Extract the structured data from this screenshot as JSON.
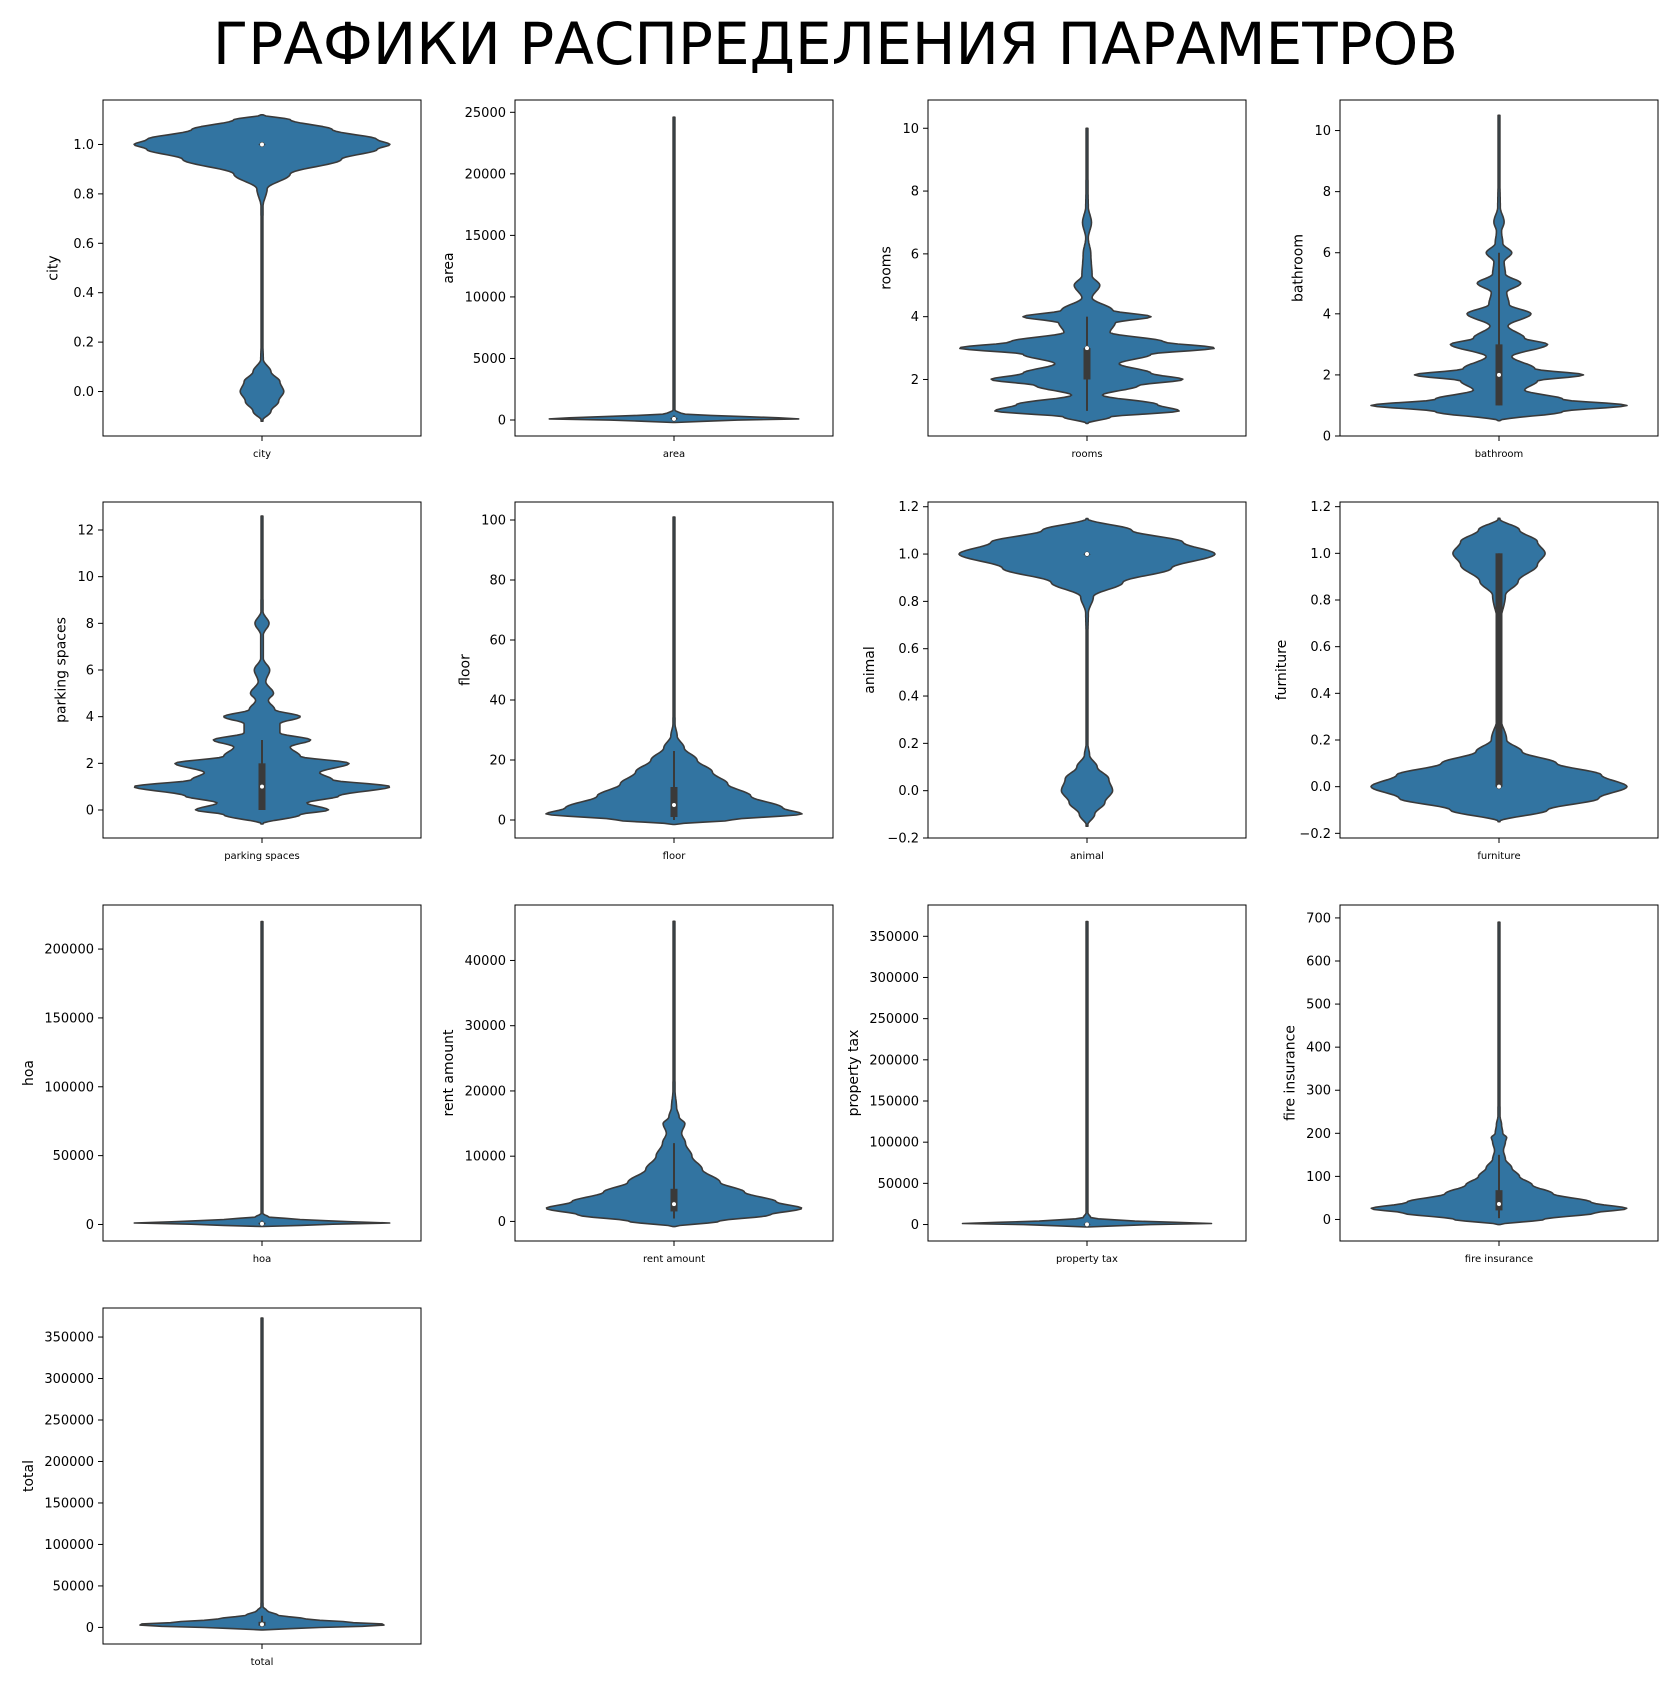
{
  "title": "ГРАФИКИ РАСПРЕДЕЛЕНИЯ ПАРАМЕТРОВ",
  "colors": {
    "violin": "#3274a1",
    "edge": "#3a3a3a",
    "box": "#3a3a3a",
    "median": "#ffffff",
    "frame": "#000000"
  },
  "chart_data": [
    {
      "type": "violin",
      "category": "city",
      "ylabel": "city",
      "ylim": [
        -0.18,
        1.18
      ],
      "yticks": [
        0.0,
        0.2,
        0.4,
        0.6,
        0.8,
        1.0
      ],
      "ytick_labels": [
        "0.0",
        "0.2",
        "0.4",
        "0.6",
        "0.8",
        "1.0"
      ],
      "density": [
        [
          -0.12,
          0
        ],
        [
          -0.08,
          0.07
        ],
        [
          -0.04,
          0.13
        ],
        [
          0.0,
          0.17
        ],
        [
          0.04,
          0.14
        ],
        [
          0.08,
          0.07
        ],
        [
          0.13,
          0.01
        ],
        [
          0.2,
          0.006
        ],
        [
          0.4,
          0.004
        ],
        [
          0.6,
          0.004
        ],
        [
          0.75,
          0.008
        ],
        [
          0.82,
          0.04
        ],
        [
          0.88,
          0.22
        ],
        [
          0.94,
          0.62
        ],
        [
          0.98,
          0.9
        ],
        [
          1.0,
          1.0
        ],
        [
          1.02,
          0.9
        ],
        [
          1.06,
          0.55
        ],
        [
          1.1,
          0.22
        ],
        [
          1.12,
          0
        ]
      ],
      "box": {
        "q1": 1.0,
        "median": 1.0,
        "q3": 1.0,
        "whisker_low": 1.0,
        "whisker_high": 1.0
      }
    },
    {
      "type": "violin",
      "category": "area",
      "ylabel": "area",
      "ylim": [
        -1300,
        26000
      ],
      "yticks": [
        0,
        5000,
        10000,
        15000,
        20000,
        25000
      ],
      "ytick_labels": [
        "0",
        "5000",
        "10000",
        "15000",
        "20000",
        "25000"
      ],
      "density": [
        [
          -200,
          0
        ],
        [
          0,
          0.5
        ],
        [
          100,
          1.0
        ],
        [
          200,
          0.8
        ],
        [
          350,
          0.3
        ],
        [
          500,
          0.06
        ],
        [
          800,
          0.006
        ],
        [
          2000,
          0.004
        ],
        [
          10000,
          0.004
        ],
        [
          24600,
          0
        ]
      ],
      "box": {
        "q1": 56,
        "median": 90,
        "q3": 182,
        "whisker_low": 11,
        "whisker_high": 360
      }
    },
    {
      "type": "violin",
      "category": "rooms",
      "ylabel": "rooms",
      "ylim": [
        0.2,
        10.9
      ],
      "yticks": [
        2,
        4,
        6,
        8,
        10
      ],
      "ytick_labels": [
        "2",
        "4",
        "6",
        "8",
        "10"
      ],
      "density": [
        [
          0.6,
          0
        ],
        [
          0.8,
          0.18
        ],
        [
          1.0,
          0.72
        ],
        [
          1.2,
          0.55
        ],
        [
          1.5,
          0.12
        ],
        [
          1.8,
          0.4
        ],
        [
          2.0,
          0.75
        ],
        [
          2.2,
          0.5
        ],
        [
          2.5,
          0.25
        ],
        [
          2.8,
          0.5
        ],
        [
          3.0,
          1.0
        ],
        [
          3.2,
          0.6
        ],
        [
          3.5,
          0.18
        ],
        [
          3.8,
          0.22
        ],
        [
          4.0,
          0.5
        ],
        [
          4.2,
          0.2
        ],
        [
          4.6,
          0.04
        ],
        [
          5.0,
          0.1
        ],
        [
          5.3,
          0.04
        ],
        [
          6.0,
          0.03
        ],
        [
          6.5,
          0.01
        ],
        [
          7.0,
          0.035
        ],
        [
          7.5,
          0.01
        ],
        [
          8.0,
          0.008
        ],
        [
          9.0,
          0.006
        ],
        [
          10.0,
          0
        ]
      ],
      "box": {
        "q1": 2,
        "median": 3,
        "q3": 3,
        "whisker_low": 1,
        "whisker_high": 4
      }
    },
    {
      "type": "violin",
      "category": "bathroom",
      "ylabel": "bathroom",
      "ylim": [
        0,
        11
      ],
      "yticks": [
        0,
        2,
        4,
        6,
        8,
        10
      ],
      "ytick_labels": [
        "0",
        "2",
        "4",
        "6",
        "8",
        "10"
      ],
      "density": [
        [
          0.5,
          0
        ],
        [
          0.8,
          0.5
        ],
        [
          1.0,
          1.0
        ],
        [
          1.2,
          0.5
        ],
        [
          1.5,
          0.2
        ],
        [
          1.8,
          0.3
        ],
        [
          2.0,
          0.66
        ],
        [
          2.2,
          0.28
        ],
        [
          2.6,
          0.1
        ],
        [
          3.0,
          0.38
        ],
        [
          3.2,
          0.2
        ],
        [
          3.6,
          0.07
        ],
        [
          4.0,
          0.25
        ],
        [
          4.3,
          0.08
        ],
        [
          4.7,
          0.06
        ],
        [
          5.0,
          0.17
        ],
        [
          5.3,
          0.05
        ],
        [
          5.7,
          0.04
        ],
        [
          6.0,
          0.1
        ],
        [
          6.3,
          0.03
        ],
        [
          6.7,
          0.02
        ],
        [
          7.0,
          0.04
        ],
        [
          7.5,
          0.01
        ],
        [
          8.5,
          0.006
        ],
        [
          10.5,
          0
        ]
      ],
      "box": {
        "q1": 1,
        "median": 2,
        "q3": 3,
        "whisker_low": 1,
        "whisker_high": 6
      }
    },
    {
      "type": "violin",
      "category": "parking spaces",
      "ylabel": "parking spaces",
      "ylim": [
        -1.2,
        13.2
      ],
      "yticks": [
        0,
        2,
        4,
        6,
        8,
        10,
        12
      ],
      "ytick_labels": [
        "0",
        "2",
        "4",
        "6",
        "8",
        "10",
        "12"
      ],
      "density": [
        [
          -0.6,
          0
        ],
        [
          -0.2,
          0.3
        ],
        [
          0.0,
          0.52
        ],
        [
          0.3,
          0.35
        ],
        [
          0.6,
          0.6
        ],
        [
          1.0,
          1.0
        ],
        [
          1.3,
          0.55
        ],
        [
          1.6,
          0.45
        ],
        [
          2.0,
          0.68
        ],
        [
          2.3,
          0.3
        ],
        [
          2.7,
          0.22
        ],
        [
          3.0,
          0.38
        ],
        [
          3.3,
          0.14
        ],
        [
          3.7,
          0.14
        ],
        [
          4.0,
          0.3
        ],
        [
          4.3,
          0.1
        ],
        [
          4.7,
          0.05
        ],
        [
          5.0,
          0.09
        ],
        [
          5.5,
          0.03
        ],
        [
          6.0,
          0.06
        ],
        [
          6.5,
          0.01
        ],
        [
          7.5,
          0.01
        ],
        [
          8.0,
          0.055
        ],
        [
          8.5,
          0.008
        ],
        [
          10.0,
          0.006
        ],
        [
          12.6,
          0
        ]
      ],
      "box": {
        "q1": 0,
        "median": 1,
        "q3": 2,
        "whisker_low": 0,
        "whisker_high": 3
      }
    },
    {
      "type": "violin",
      "category": "floor",
      "ylabel": "floor",
      "ylim": [
        -6,
        106
      ],
      "yticks": [
        0,
        20,
        40,
        60,
        80,
        100
      ],
      "ytick_labels": [
        "0",
        "20",
        "40",
        "60",
        "80",
        "100"
      ],
      "density": [
        [
          -1.5,
          0
        ],
        [
          0,
          0.45
        ],
        [
          2,
          1.0
        ],
        [
          4,
          0.85
        ],
        [
          8,
          0.6
        ],
        [
          12,
          0.42
        ],
        [
          16,
          0.3
        ],
        [
          20,
          0.18
        ],
        [
          24,
          0.08
        ],
        [
          28,
          0.025
        ],
        [
          32,
          0.008
        ],
        [
          40,
          0.005
        ],
        [
          100,
          0.005
        ],
        [
          101,
          0
        ]
      ],
      "box": {
        "q1": 1,
        "median": 5,
        "q3": 11,
        "whisker_low": 0,
        "whisker_high": 23
      }
    },
    {
      "type": "violin",
      "category": "animal",
      "ylabel": "animal",
      "ylim": [
        -0.2,
        1.22
      ],
      "yticks": [
        -0.2,
        0.0,
        0.2,
        0.4,
        0.6,
        0.8,
        1.0,
        1.2
      ],
      "ytick_labels": [
        "−0.2",
        "0.0",
        "0.2",
        "0.4",
        "0.6",
        "0.8",
        "1.0",
        "1.2"
      ],
      "density": [
        [
          -0.15,
          0
        ],
        [
          -0.1,
          0.06
        ],
        [
          -0.05,
          0.14
        ],
        [
          0.0,
          0.2
        ],
        [
          0.05,
          0.17
        ],
        [
          0.1,
          0.08
        ],
        [
          0.15,
          0.02
        ],
        [
          0.2,
          0.006
        ],
        [
          0.4,
          0.004
        ],
        [
          0.6,
          0.004
        ],
        [
          0.75,
          0.01
        ],
        [
          0.82,
          0.05
        ],
        [
          0.88,
          0.28
        ],
        [
          0.94,
          0.66
        ],
        [
          1.0,
          1.0
        ],
        [
          1.05,
          0.75
        ],
        [
          1.1,
          0.35
        ],
        [
          1.15,
          0
        ]
      ],
      "box": {
        "q1": 1.0,
        "median": 1.0,
        "q3": 1.0,
        "whisker_low": 1.0,
        "whisker_high": 1.0
      }
    },
    {
      "type": "violin",
      "category": "furniture",
      "ylabel": "furniture",
      "ylim": [
        -0.22,
        1.22
      ],
      "yticks": [
        -0.2,
        0.0,
        0.2,
        0.4,
        0.6,
        0.8,
        1.0,
        1.2
      ],
      "ytick_labels": [
        "−0.2",
        "0.0",
        "0.2",
        "0.4",
        "0.6",
        "0.8",
        "1.0",
        "1.2"
      ],
      "density": [
        [
          -0.15,
          0
        ],
        [
          -0.1,
          0.38
        ],
        [
          -0.05,
          0.78
        ],
        [
          0.0,
          1.0
        ],
        [
          0.05,
          0.8
        ],
        [
          0.1,
          0.45
        ],
        [
          0.15,
          0.18
        ],
        [
          0.2,
          0.06
        ],
        [
          0.3,
          0.01
        ],
        [
          0.5,
          0.004
        ],
        [
          0.7,
          0.01
        ],
        [
          0.82,
          0.05
        ],
        [
          0.88,
          0.15
        ],
        [
          0.95,
          0.3
        ],
        [
          1.0,
          0.36
        ],
        [
          1.05,
          0.3
        ],
        [
          1.1,
          0.16
        ],
        [
          1.15,
          0
        ]
      ],
      "box": {
        "q1": 0.0,
        "median": 0.0,
        "q3": 1.0,
        "whisker_low": 0.0,
        "whisker_high": 1.0
      }
    },
    {
      "type": "violin",
      "category": "hoa",
      "ylabel": "hoa",
      "ylim": [
        -12000,
        232000
      ],
      "yticks": [
        0,
        50000,
        100000,
        150000,
        200000
      ],
      "ytick_labels": [
        "0",
        "50000",
        "100000",
        "150000",
        "200000"
      ],
      "density": [
        [
          -1500,
          0
        ],
        [
          0,
          0.5
        ],
        [
          1000,
          1.0
        ],
        [
          2000,
          0.7
        ],
        [
          3500,
          0.3
        ],
        [
          5500,
          0.05
        ],
        [
          8000,
          0.005
        ],
        [
          20000,
          0.004
        ],
        [
          220000,
          0
        ]
      ],
      "box": {
        "q1": 170,
        "median": 560,
        "q3": 1240,
        "whisker_low": 0,
        "whisker_high": 2800
      }
    },
    {
      "type": "violin",
      "category": "rent amount",
      "ylabel": "rent amount",
      "ylim": [
        -3000,
        48500
      ],
      "yticks": [
        0,
        10000,
        20000,
        30000,
        40000
      ],
      "ytick_labels": [
        "0",
        "10000",
        "20000",
        "30000",
        "40000"
      ],
      "density": [
        [
          -800,
          0
        ],
        [
          0,
          0.35
        ],
        [
          1000,
          0.75
        ],
        [
          2000,
          1.0
        ],
        [
          3000,
          0.8
        ],
        [
          4500,
          0.55
        ],
        [
          6000,
          0.36
        ],
        [
          8000,
          0.22
        ],
        [
          10000,
          0.14
        ],
        [
          12000,
          0.09
        ],
        [
          13500,
          0.06
        ],
        [
          15000,
          0.085
        ],
        [
          16000,
          0.04
        ],
        [
          17500,
          0.02
        ],
        [
          20000,
          0.008
        ],
        [
          25000,
          0.005
        ],
        [
          46000,
          0
        ]
      ],
      "box": {
        "q1": 1530,
        "median": 2660,
        "q3": 5000,
        "whisker_low": 450,
        "whisker_high": 12000
      }
    },
    {
      "type": "violin",
      "category": "property tax",
      "ylabel": "property tax",
      "ylim": [
        -20000,
        388000
      ],
      "yticks": [
        0,
        50000,
        100000,
        150000,
        200000,
        250000,
        300000,
        350000
      ],
      "ytick_labels": [
        "0",
        "50000",
        "100000",
        "150000",
        "200000",
        "250000",
        "300000",
        "350000"
      ],
      "density": [
        [
          -3000,
          0
        ],
        [
          0,
          0.5
        ],
        [
          1000,
          1.0
        ],
        [
          2500,
          0.7
        ],
        [
          5000,
          0.25
        ],
        [
          8000,
          0.03
        ],
        [
          15000,
          0.004
        ],
        [
          100000,
          0.004
        ],
        [
          368000,
          0
        ]
      ],
      "box": {
        "q1": 38,
        "median": 125,
        "q3": 375,
        "whisker_low": 0,
        "whisker_high": 880
      }
    },
    {
      "type": "violin",
      "category": "fire insurance",
      "ylabel": "fire insurance",
      "ylim": [
        -50,
        730
      ],
      "yticks": [
        0,
        100,
        200,
        300,
        400,
        500,
        600,
        700
      ],
      "ytick_labels": [
        "0",
        "100",
        "200",
        "300",
        "400",
        "500",
        "600",
        "700"
      ],
      "density": [
        [
          -12,
          0
        ],
        [
          0,
          0.35
        ],
        [
          15,
          0.75
        ],
        [
          25,
          1.0
        ],
        [
          40,
          0.72
        ],
        [
          60,
          0.42
        ],
        [
          80,
          0.26
        ],
        [
          100,
          0.16
        ],
        [
          120,
          0.1
        ],
        [
          140,
          0.05
        ],
        [
          160,
          0.035
        ],
        [
          180,
          0.05
        ],
        [
          190,
          0.06
        ],
        [
          200,
          0.03
        ],
        [
          220,
          0.02
        ],
        [
          240,
          0.008
        ],
        [
          300,
          0.006
        ],
        [
          690,
          0
        ]
      ],
      "box": {
        "q1": 21,
        "median": 36,
        "q3": 68,
        "whisker_low": 3,
        "whisker_high": 150
      }
    },
    {
      "type": "violin",
      "category": "total",
      "ylabel": "total",
      "ylim": [
        -20000,
        385000
      ],
      "yticks": [
        0,
        50000,
        100000,
        150000,
        200000,
        250000,
        300000,
        350000
      ],
      "ytick_labels": [
        "0",
        "50000",
        "100000",
        "150000",
        "200000",
        "250000",
        "300000",
        "350000"
      ],
      "density": [
        [
          -3000,
          0
        ],
        [
          0,
          0.45
        ],
        [
          2000,
          0.9
        ],
        [
          3500,
          1.0
        ],
        [
          6000,
          0.7
        ],
        [
          10000,
          0.35
        ],
        [
          15000,
          0.12
        ],
        [
          20000,
          0.04
        ],
        [
          25000,
          0.008
        ],
        [
          40000,
          0.005
        ],
        [
          373000,
          0
        ]
      ],
      "box": {
        "q1": 2060,
        "median": 3580,
        "q3": 6770,
        "whisker_low": 500,
        "whisker_high": 14000
      }
    }
  ]
}
